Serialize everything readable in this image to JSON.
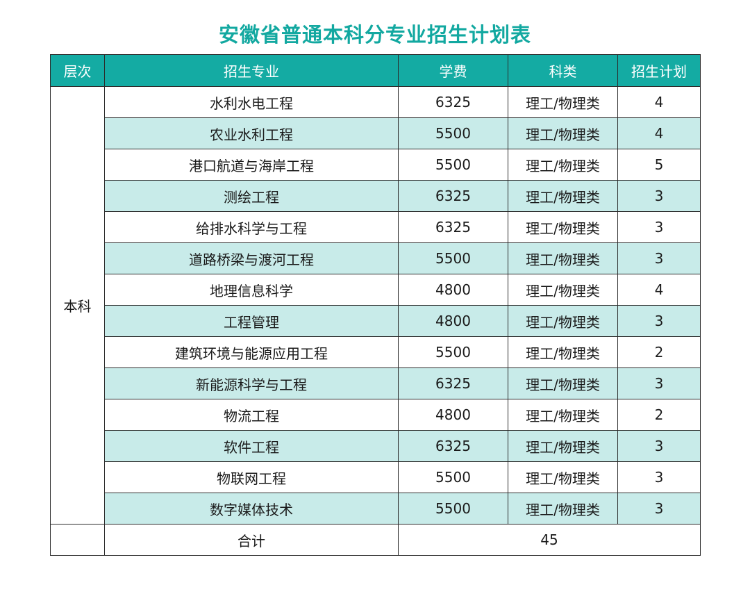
{
  "title": "安徽省普通本科分专业招生计划表",
  "headers": {
    "level": "层次",
    "major": "招生专业",
    "tuition": "学费",
    "category": "科类",
    "plan": "招生计划"
  },
  "level": "本科",
  "rows": [
    {
      "major": "水利水电工程",
      "tuition": "6325",
      "category": "理工/物理类",
      "plan": "4"
    },
    {
      "major": "农业水利工程",
      "tuition": "5500",
      "category": "理工/物理类",
      "plan": "4"
    },
    {
      "major": "港口航道与海岸工程",
      "tuition": "5500",
      "category": "理工/物理类",
      "plan": "5"
    },
    {
      "major": "测绘工程",
      "tuition": "6325",
      "category": "理工/物理类",
      "plan": "3"
    },
    {
      "major": "给排水科学与工程",
      "tuition": "6325",
      "category": "理工/物理类",
      "plan": "3"
    },
    {
      "major": "道路桥梁与渡河工程",
      "tuition": "5500",
      "category": "理工/物理类",
      "plan": "3"
    },
    {
      "major": "地理信息科学",
      "tuition": "4800",
      "category": "理工/物理类",
      "plan": "4"
    },
    {
      "major": "工程管理",
      "tuition": "4800",
      "category": "理工/物理类",
      "plan": "3"
    },
    {
      "major": "建筑环境与能源应用工程",
      "tuition": "5500",
      "category": "理工/物理类",
      "plan": "2"
    },
    {
      "major": "新能源科学与工程",
      "tuition": "6325",
      "category": "理工/物理类",
      "plan": "3"
    },
    {
      "major": "物流工程",
      "tuition": "4800",
      "category": "理工/物理类",
      "plan": "2"
    },
    {
      "major": "软件工程",
      "tuition": "6325",
      "category": "理工/物理类",
      "plan": "3"
    },
    {
      "major": "物联网工程",
      "tuition": "5500",
      "category": "理工/物理类",
      "plan": "3"
    },
    {
      "major": "数字媒体技术",
      "tuition": "5500",
      "category": "理工/物理类",
      "plan": "3"
    }
  ],
  "total": {
    "label": "合计",
    "value": "45"
  },
  "colors": {
    "title": "#12a8a0",
    "header_bg": "#14aba3",
    "alt_row_bg": "#c8ebe9",
    "border": "#2b2b2b"
  }
}
